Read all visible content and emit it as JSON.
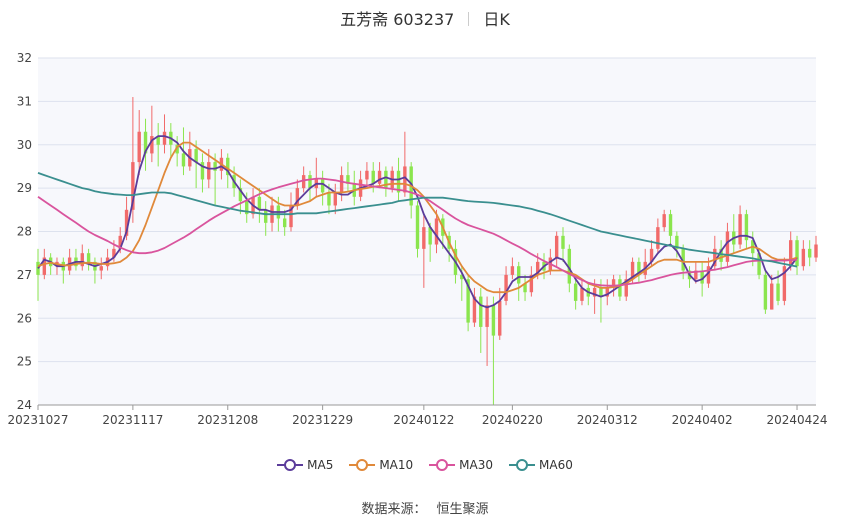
{
  "header": {
    "stock_title": "五芳斋 603237",
    "period": "日K"
  },
  "source": {
    "label": "数据来源：",
    "name": "恒生聚源"
  },
  "colors": {
    "up": "#f16a6a",
    "down": "#8be54e",
    "ma5": "#5b3c9a",
    "ma10": "#e0893a",
    "ma30": "#d9549d",
    "ma60": "#3a8f8f",
    "plot_bg": "#f7f8fc",
    "grid": "#dde2ee"
  },
  "chart_data": {
    "type": "candlestick",
    "y_axis": {
      "min": 24,
      "max": 32,
      "ticks": [
        24,
        25,
        26,
        27,
        28,
        29,
        30,
        31,
        32
      ]
    },
    "x_axis_ticks": [
      {
        "label": "20231027",
        "index": 0
      },
      {
        "label": "20231117",
        "index": 15
      },
      {
        "label": "20231208",
        "index": 30
      },
      {
        "label": "20231229",
        "index": 45
      },
      {
        "label": "20240122",
        "index": 61
      },
      {
        "label": "20240220",
        "index": 75
      },
      {
        "label": "20240312",
        "index": 90
      },
      {
        "label": "20240402",
        "index": 105
      },
      {
        "label": "20240424",
        "index": 120
      }
    ],
    "candles": [
      [
        27.3,
        27.0,
        27.6,
        26.4
      ],
      [
        27.0,
        27.4,
        27.6,
        26.9
      ],
      [
        27.4,
        27.2,
        27.5,
        27.0
      ],
      [
        27.2,
        27.3,
        27.4,
        27.0
      ],
      [
        27.3,
        27.1,
        27.4,
        26.8
      ],
      [
        27.1,
        27.4,
        27.6,
        27.0
      ],
      [
        27.4,
        27.2,
        27.6,
        27.1
      ],
      [
        27.2,
        27.5,
        27.7,
        27.1
      ],
      [
        27.5,
        27.3,
        27.6,
        27.1
      ],
      [
        27.3,
        27.1,
        27.4,
        26.8
      ],
      [
        27.1,
        27.2,
        27.4,
        26.9
      ],
      [
        27.2,
        27.4,
        27.6,
        27.1
      ],
      [
        27.4,
        27.6,
        27.8,
        27.3
      ],
      [
        27.6,
        27.9,
        28.1,
        27.5
      ],
      [
        27.9,
        28.5,
        28.8,
        27.8
      ],
      [
        28.5,
        29.6,
        31.1,
        28.2
      ],
      [
        29.6,
        30.3,
        30.8,
        29.3
      ],
      [
        30.3,
        29.8,
        30.6,
        29.4
      ],
      [
        29.8,
        30.2,
        30.9,
        29.6
      ],
      [
        30.2,
        30.0,
        30.5,
        29.5
      ],
      [
        30.0,
        30.3,
        30.7,
        29.8
      ],
      [
        30.3,
        30.0,
        30.5,
        29.7
      ],
      [
        30.0,
        29.8,
        30.2,
        29.5
      ],
      [
        29.8,
        29.5,
        30.4,
        29.3
      ],
      [
        29.5,
        29.9,
        30.3,
        29.4
      ],
      [
        29.9,
        29.6,
        30.1,
        29.0
      ],
      [
        29.6,
        29.2,
        29.8,
        28.9
      ],
      [
        29.2,
        29.6,
        29.9,
        29.0
      ],
      [
        29.6,
        29.4,
        29.8,
        28.6
      ],
      [
        29.4,
        29.7,
        29.9,
        29.2
      ],
      [
        29.7,
        29.3,
        29.8,
        29.0
      ],
      [
        29.3,
        29.0,
        29.5,
        28.8
      ],
      [
        29.0,
        28.7,
        29.2,
        28.4
      ],
      [
        28.7,
        28.4,
        28.9,
        28.2
      ],
      [
        28.4,
        28.8,
        29.0,
        28.3
      ],
      [
        28.8,
        28.5,
        29.0,
        28.2
      ],
      [
        28.5,
        28.2,
        28.7,
        27.9
      ],
      [
        28.2,
        28.6,
        28.8,
        28.0
      ],
      [
        28.6,
        28.3,
        28.8,
        28.0
      ],
      [
        28.3,
        28.1,
        28.5,
        27.9
      ],
      [
        28.1,
        28.6,
        28.9,
        28.0
      ],
      [
        28.6,
        29.0,
        29.2,
        28.5
      ],
      [
        29.0,
        29.3,
        29.5,
        28.9
      ],
      [
        29.3,
        29.0,
        29.4,
        28.7
      ],
      [
        29.0,
        29.2,
        29.7,
        28.8
      ],
      [
        29.2,
        28.9,
        29.4,
        28.6
      ],
      [
        28.9,
        28.6,
        29.1,
        28.4
      ],
      [
        28.6,
        28.9,
        29.1,
        28.4
      ],
      [
        28.9,
        29.3,
        29.5,
        28.7
      ],
      [
        29.3,
        29.1,
        29.6,
        28.9
      ],
      [
        29.1,
        28.8,
        29.4,
        28.6
      ],
      [
        28.8,
        29.2,
        29.4,
        28.7
      ],
      [
        29.2,
        29.4,
        29.6,
        29.0
      ],
      [
        29.4,
        29.1,
        29.6,
        28.9
      ],
      [
        29.1,
        29.4,
        29.6,
        29.0
      ],
      [
        29.4,
        29.0,
        29.5,
        28.8
      ],
      [
        29.0,
        29.4,
        29.5,
        28.9
      ],
      [
        29.4,
        28.9,
        29.7,
        28.7
      ],
      [
        28.9,
        29.5,
        30.3,
        28.8
      ],
      [
        29.5,
        28.6,
        29.6,
        28.3
      ],
      [
        28.6,
        27.6,
        28.7,
        27.4
      ],
      [
        27.6,
        28.1,
        28.4,
        26.7
      ],
      [
        28.1,
        27.7,
        28.2,
        27.3
      ],
      [
        27.7,
        28.3,
        28.5,
        27.5
      ],
      [
        28.3,
        27.9,
        28.4,
        27.6
      ],
      [
        27.9,
        27.6,
        28.0,
        27.3
      ],
      [
        27.6,
        27.0,
        27.8,
        26.8
      ],
      [
        27.0,
        26.9,
        27.2,
        26.4
      ],
      [
        26.9,
        25.9,
        27.0,
        25.7
      ],
      [
        25.9,
        26.5,
        26.7,
        25.8
      ],
      [
        26.5,
        25.8,
        26.7,
        25.2
      ],
      [
        25.8,
        26.3,
        26.5,
        24.9
      ],
      [
        26.3,
        25.6,
        26.5,
        24.0
      ],
      [
        25.6,
        26.4,
        26.7,
        25.5
      ],
      [
        26.4,
        27.0,
        27.2,
        26.3
      ],
      [
        27.0,
        27.2,
        27.4,
        26.9
      ],
      [
        27.2,
        26.8,
        27.3,
        26.4
      ],
      [
        26.8,
        26.6,
        27.0,
        26.4
      ],
      [
        26.6,
        27.0,
        27.2,
        26.5
      ],
      [
        27.0,
        27.3,
        27.5,
        26.9
      ],
      [
        27.3,
        27.1,
        27.5,
        26.9
      ],
      [
        27.1,
        27.4,
        27.6,
        27.0
      ],
      [
        27.4,
        27.9,
        28.0,
        27.2
      ],
      [
        27.9,
        27.6,
        28.1,
        27.3
      ],
      [
        27.6,
        26.8,
        27.7,
        26.6
      ],
      [
        26.8,
        26.4,
        26.9,
        26.2
      ],
      [
        26.4,
        26.7,
        26.9,
        26.3
      ],
      [
        26.7,
        26.5,
        26.8,
        26.3
      ],
      [
        26.5,
        26.7,
        26.9,
        26.1
      ],
      [
        26.7,
        26.5,
        26.9,
        25.9
      ],
      [
        26.5,
        26.7,
        26.9,
        26.3
      ],
      [
        26.7,
        26.9,
        27.0,
        26.5
      ],
      [
        26.9,
        26.5,
        27.0,
        26.4
      ],
      [
        26.5,
        26.9,
        27.1,
        26.4
      ],
      [
        26.9,
        27.3,
        27.4,
        26.8
      ],
      [
        27.3,
        27.0,
        27.4,
        26.8
      ],
      [
        27.0,
        27.3,
        27.6,
        26.9
      ],
      [
        27.3,
        27.6,
        27.8,
        27.2
      ],
      [
        27.6,
        28.1,
        28.3,
        27.5
      ],
      [
        28.1,
        28.4,
        28.5,
        28.0
      ],
      [
        28.4,
        27.9,
        28.5,
        27.7
      ],
      [
        27.9,
        27.6,
        28.0,
        27.4
      ],
      [
        27.6,
        27.1,
        27.7,
        26.9
      ],
      [
        27.1,
        26.9,
        27.2,
        26.7
      ],
      [
        26.9,
        27.1,
        27.3,
        26.8
      ],
      [
        27.1,
        26.8,
        27.3,
        26.5
      ],
      [
        26.8,
        27.2,
        27.4,
        26.7
      ],
      [
        27.2,
        27.6,
        27.9,
        27.1
      ],
      [
        27.6,
        27.3,
        27.8,
        27.1
      ],
      [
        27.3,
        28.0,
        28.2,
        27.2
      ],
      [
        28.0,
        27.7,
        28.4,
        27.5
      ],
      [
        27.7,
        28.4,
        28.6,
        27.6
      ],
      [
        28.4,
        27.8,
        28.5,
        27.6
      ],
      [
        27.8,
        27.5,
        28.0,
        27.2
      ],
      [
        27.5,
        27.0,
        27.6,
        26.9
      ],
      [
        27.0,
        26.2,
        27.1,
        26.1
      ],
      [
        26.2,
        26.8,
        27.0,
        26.2
      ],
      [
        26.8,
        26.4,
        27.1,
        26.3
      ],
      [
        26.4,
        27.2,
        27.4,
        26.3
      ],
      [
        27.2,
        27.8,
        28.0,
        27.1
      ],
      [
        27.8,
        27.2,
        27.9,
        27.0
      ],
      [
        27.2,
        27.6,
        27.8,
        27.1
      ],
      [
        27.6,
        27.4,
        27.8,
        27.2
      ],
      [
        27.4,
        27.7,
        27.9,
        27.3
      ]
    ],
    "series": [
      {
        "name": "MA5",
        "color_key": "ma5",
        "values": [
          27.15,
          27.35,
          27.3,
          27.2,
          27.2,
          27.25,
          27.3,
          27.3,
          27.25,
          27.2,
          27.25,
          27.3,
          27.4,
          27.6,
          28.0,
          28.7,
          29.4,
          29.85,
          30.1,
          30.2,
          30.2,
          30.15,
          30.05,
          29.85,
          29.7,
          29.6,
          29.5,
          29.45,
          29.45,
          29.5,
          29.4,
          29.15,
          28.95,
          28.75,
          28.6,
          28.5,
          28.5,
          28.45,
          28.45,
          28.45,
          28.5,
          28.7,
          28.85,
          29.0,
          29.1,
          29.1,
          29.0,
          28.9,
          28.85,
          28.85,
          28.95,
          29.0,
          29.05,
          29.1,
          29.2,
          29.25,
          29.2,
          29.2,
          29.25,
          29.1,
          28.8,
          28.4,
          28.1,
          27.9,
          27.7,
          27.5,
          27.3,
          27.05,
          26.75,
          26.45,
          26.3,
          26.25,
          26.3,
          26.4,
          26.6,
          26.85,
          26.95,
          26.95,
          26.95,
          27.05,
          27.2,
          27.3,
          27.4,
          27.35,
          27.15,
          26.9,
          26.7,
          26.6,
          26.55,
          26.5,
          26.55,
          26.65,
          26.75,
          26.85,
          26.95,
          27.05,
          27.15,
          27.3,
          27.5,
          27.65,
          27.7,
          27.55,
          27.3,
          27.0,
          26.85,
          26.9,
          27.05,
          27.3,
          27.55,
          27.75,
          27.85,
          27.9,
          27.9,
          27.85,
          27.5,
          27.1,
          26.9,
          26.95,
          27.05,
          27.2,
          27.4
        ]
      },
      {
        "name": "MA10",
        "color_key": "ma10",
        "values": [
          27.2,
          27.25,
          27.28,
          27.25,
          27.22,
          27.22,
          27.25,
          27.27,
          27.28,
          27.27,
          27.25,
          27.25,
          27.27,
          27.3,
          27.4,
          27.55,
          27.8,
          28.15,
          28.55,
          28.95,
          29.35,
          29.7,
          29.95,
          30.05,
          30.05,
          29.95,
          29.85,
          29.75,
          29.65,
          29.55,
          29.45,
          29.35,
          29.25,
          29.15,
          29.05,
          28.95,
          28.85,
          28.75,
          28.65,
          28.6,
          28.6,
          28.6,
          28.65,
          28.7,
          28.8,
          28.85,
          28.9,
          28.9,
          28.9,
          28.92,
          28.95,
          28.98,
          29.0,
          29.03,
          29.05,
          29.08,
          29.1,
          29.1,
          29.1,
          29.05,
          28.95,
          28.8,
          28.6,
          28.4,
          28.1,
          27.75,
          27.45,
          27.2,
          27.0,
          26.85,
          26.75,
          26.65,
          26.6,
          26.6,
          26.6,
          26.65,
          26.7,
          26.8,
          26.9,
          27.0,
          27.05,
          27.1,
          27.1,
          27.1,
          27.05,
          27.0,
          26.9,
          26.8,
          26.75,
          26.7,
          26.7,
          26.72,
          26.75,
          26.8,
          26.9,
          27.0,
          27.1,
          27.2,
          27.3,
          27.35,
          27.35,
          27.35,
          27.3,
          27.3,
          27.3,
          27.3,
          27.3,
          27.35,
          27.4,
          27.45,
          27.5,
          27.55,
          27.6,
          27.65,
          27.6,
          27.5,
          27.4,
          27.35,
          27.35,
          27.35,
          27.4
        ]
      },
      {
        "name": "MA30",
        "color_key": "ma30",
        "values": [
          28.8,
          28.7,
          28.6,
          28.5,
          28.4,
          28.3,
          28.2,
          28.1,
          28.0,
          27.92,
          27.85,
          27.78,
          27.7,
          27.63,
          27.57,
          27.52,
          27.5,
          27.5,
          27.52,
          27.56,
          27.62,
          27.7,
          27.78,
          27.86,
          27.95,
          28.05,
          28.15,
          28.25,
          28.34,
          28.42,
          28.5,
          28.58,
          28.65,
          28.72,
          28.79,
          28.86,
          28.92,
          28.97,
          29.02,
          29.06,
          29.1,
          29.14,
          29.18,
          29.2,
          29.22,
          29.22,
          29.2,
          29.18,
          29.15,
          29.12,
          29.1,
          29.08,
          29.06,
          29.04,
          29.02,
          29.0,
          28.98,
          28.96,
          28.94,
          28.9,
          28.85,
          28.78,
          28.7,
          28.6,
          28.5,
          28.4,
          28.3,
          28.22,
          28.15,
          28.1,
          28.05,
          28.0,
          27.95,
          27.88,
          27.8,
          27.72,
          27.65,
          27.57,
          27.48,
          27.4,
          27.32,
          27.25,
          27.18,
          27.1,
          27.02,
          26.95,
          26.88,
          26.82,
          26.78,
          26.76,
          26.75,
          26.75,
          26.76,
          26.78,
          26.8,
          26.82,
          26.85,
          26.88,
          26.92,
          26.96,
          27.0,
          27.03,
          27.05,
          27.06,
          27.07,
          27.08,
          27.1,
          27.12,
          27.15,
          27.18,
          27.22,
          27.26,
          27.3,
          27.32,
          27.33,
          27.33,
          27.33,
          27.33,
          27.33,
          27.34,
          27.35
        ]
      },
      {
        "name": "MA60",
        "color_key": "ma60",
        "values": [
          29.35,
          29.3,
          29.25,
          29.2,
          29.15,
          29.1,
          29.05,
          29.0,
          28.97,
          28.93,
          28.9,
          28.88,
          28.86,
          28.85,
          28.84,
          28.84,
          28.86,
          28.88,
          28.9,
          28.9,
          28.9,
          28.88,
          28.84,
          28.8,
          28.76,
          28.72,
          28.68,
          28.64,
          28.6,
          28.57,
          28.54,
          28.51,
          28.48,
          28.46,
          28.44,
          28.42,
          28.4,
          28.4,
          28.4,
          28.4,
          28.4,
          28.42,
          28.42,
          28.42,
          28.42,
          28.44,
          28.46,
          28.48,
          28.5,
          28.52,
          28.54,
          28.56,
          28.58,
          28.6,
          28.62,
          28.64,
          28.66,
          28.7,
          28.72,
          28.74,
          28.76,
          28.78,
          28.78,
          28.78,
          28.78,
          28.76,
          28.74,
          28.72,
          28.7,
          28.69,
          28.68,
          28.67,
          28.66,
          28.64,
          28.62,
          28.6,
          28.58,
          28.55,
          28.52,
          28.48,
          28.44,
          28.4,
          28.35,
          28.3,
          28.25,
          28.2,
          28.15,
          28.1,
          28.05,
          28.0,
          27.97,
          27.94,
          27.91,
          27.88,
          27.85,
          27.82,
          27.79,
          27.76,
          27.73,
          27.7,
          27.67,
          27.64,
          27.61,
          27.58,
          27.56,
          27.54,
          27.52,
          27.5,
          27.48,
          27.46,
          27.44,
          27.42,
          27.4,
          27.38,
          27.35,
          27.33,
          27.31,
          27.28,
          27.25,
          27.22,
          27.19
        ]
      }
    ]
  }
}
